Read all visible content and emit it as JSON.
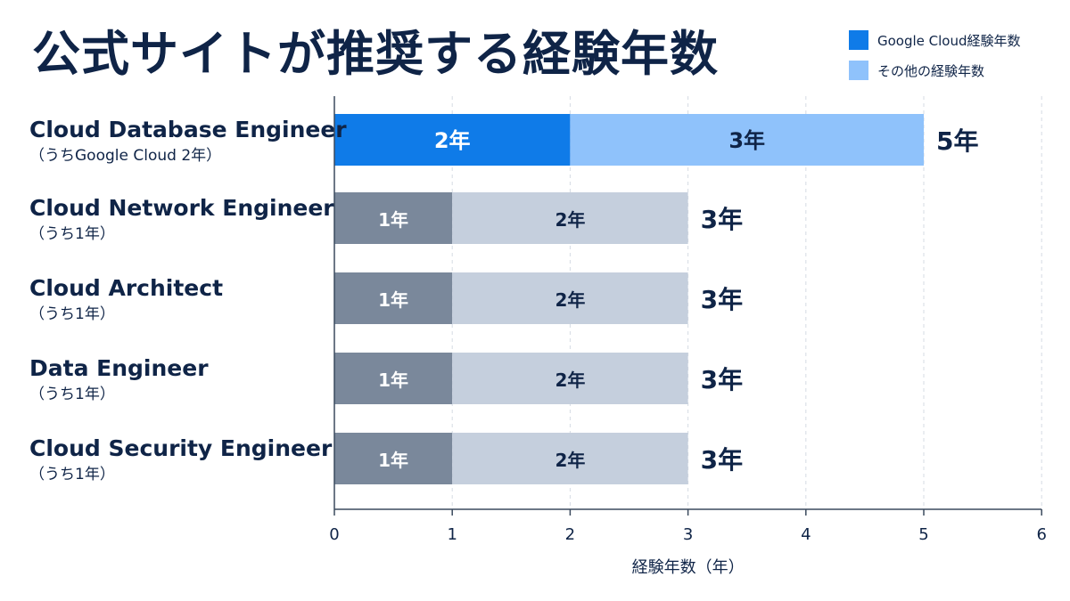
{
  "title": "公式サイトが推奨する経験年数",
  "legend": [
    {
      "label": "Google Cloud経験年数",
      "color": "#0f7be8"
    },
    {
      "label": "その他の経験年数",
      "color": "#8fc2fb"
    }
  ],
  "chart_data": {
    "type": "bar",
    "orientation": "horizontal",
    "stacked": true,
    "title": "公式サイトが推奨する経験年数",
    "xlabel": "経験年数（年）",
    "ylabel": "",
    "xlim": [
      0,
      6
    ],
    "xticks": [
      "0",
      "1",
      "2",
      "3",
      "4",
      "5",
      "6"
    ],
    "grid": "vertical dashed",
    "legend_position": "top-right",
    "categories": [
      {
        "name": "Cloud Database Engineer",
        "sub": "（うちGoogle Cloud 2年）"
      },
      {
        "name": "Cloud Network Engineer",
        "sub": "（うち1年）"
      },
      {
        "name": "Cloud Architect",
        "sub": "（うち1年）"
      },
      {
        "name": "Data Engineer",
        "sub": "（うち1年）"
      },
      {
        "name": "Cloud Security Engineer",
        "sub": "（うち1年）"
      }
    ],
    "series": [
      {
        "name": "Google Cloud経験年数",
        "values": [
          2,
          1,
          1,
          1,
          1
        ],
        "labels": [
          "2年",
          "1年",
          "1年",
          "1年",
          "1年"
        ]
      },
      {
        "name": "その他の経験年数",
        "values": [
          3,
          2,
          2,
          2,
          2
        ],
        "labels": [
          "3年",
          "2年",
          "2年",
          "2年",
          "2年"
        ]
      }
    ],
    "totals": [
      "5年",
      "3年",
      "3年",
      "3年",
      "3年"
    ],
    "colors": {
      "highlight_google": "#0f7be8",
      "highlight_other": "#8fc2fb",
      "muted_google": "#7a889b",
      "muted_other": "#c5cfdd",
      "highlight_other_text": "#0f2447",
      "muted_other_text": "#0f2447"
    }
  }
}
